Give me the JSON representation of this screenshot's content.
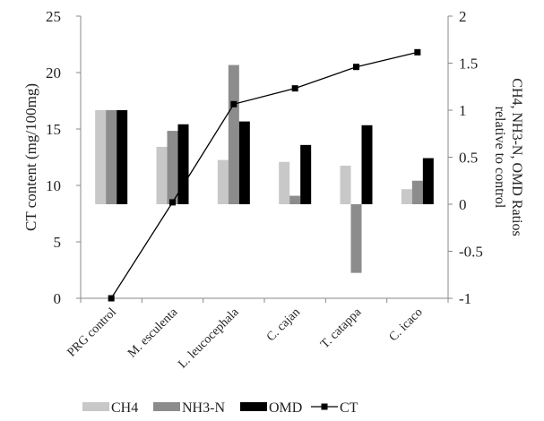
{
  "chart_data": {
    "type": "bar",
    "categories": [
      "PRG control",
      "M. esculenta",
      "L. leucocephala",
      "C. cajan",
      "T. catappa",
      "C. icaco"
    ],
    "series": [
      {
        "name": "CH4",
        "axis": "right",
        "kind": "bar",
        "values": [
          1.0,
          0.61,
          0.47,
          0.45,
          0.41,
          0.16
        ],
        "color": "#c8c8c8"
      },
      {
        "name": "NH3-N",
        "axis": "right",
        "kind": "bar",
        "values": [
          1.0,
          0.78,
          1.48,
          0.09,
          -0.73,
          0.25
        ],
        "color": "#8c8c8c"
      },
      {
        "name": "OMD",
        "axis": "right",
        "kind": "bar",
        "values": [
          1.0,
          0.85,
          0.88,
          0.63,
          0.84,
          0.49
        ],
        "color": "#000000"
      },
      {
        "name": "CT",
        "axis": "left",
        "kind": "line",
        "values": [
          0.0,
          8.5,
          17.2,
          18.6,
          20.5,
          21.8
        ],
        "color": "#000000"
      }
    ],
    "y_left": {
      "label": "CT content (mg/100mg)",
      "ylim": [
        0,
        25
      ],
      "ticks": [
        "0",
        "5",
        "10",
        "15",
        "20",
        "25"
      ]
    },
    "y_right": {
      "label_lines": [
        "CH4, NH3-N, OMD Ratios",
        "relative to control"
      ],
      "ylim": [
        -1,
        2
      ],
      "ticks": [
        "-1",
        "-0.5",
        "0",
        "0.5",
        "1",
        "1.5",
        "2"
      ]
    },
    "legend": {
      "position": "bottom",
      "entries": [
        "CH4",
        "NH3-N",
        "OMD",
        "CT"
      ]
    },
    "grid": false
  }
}
